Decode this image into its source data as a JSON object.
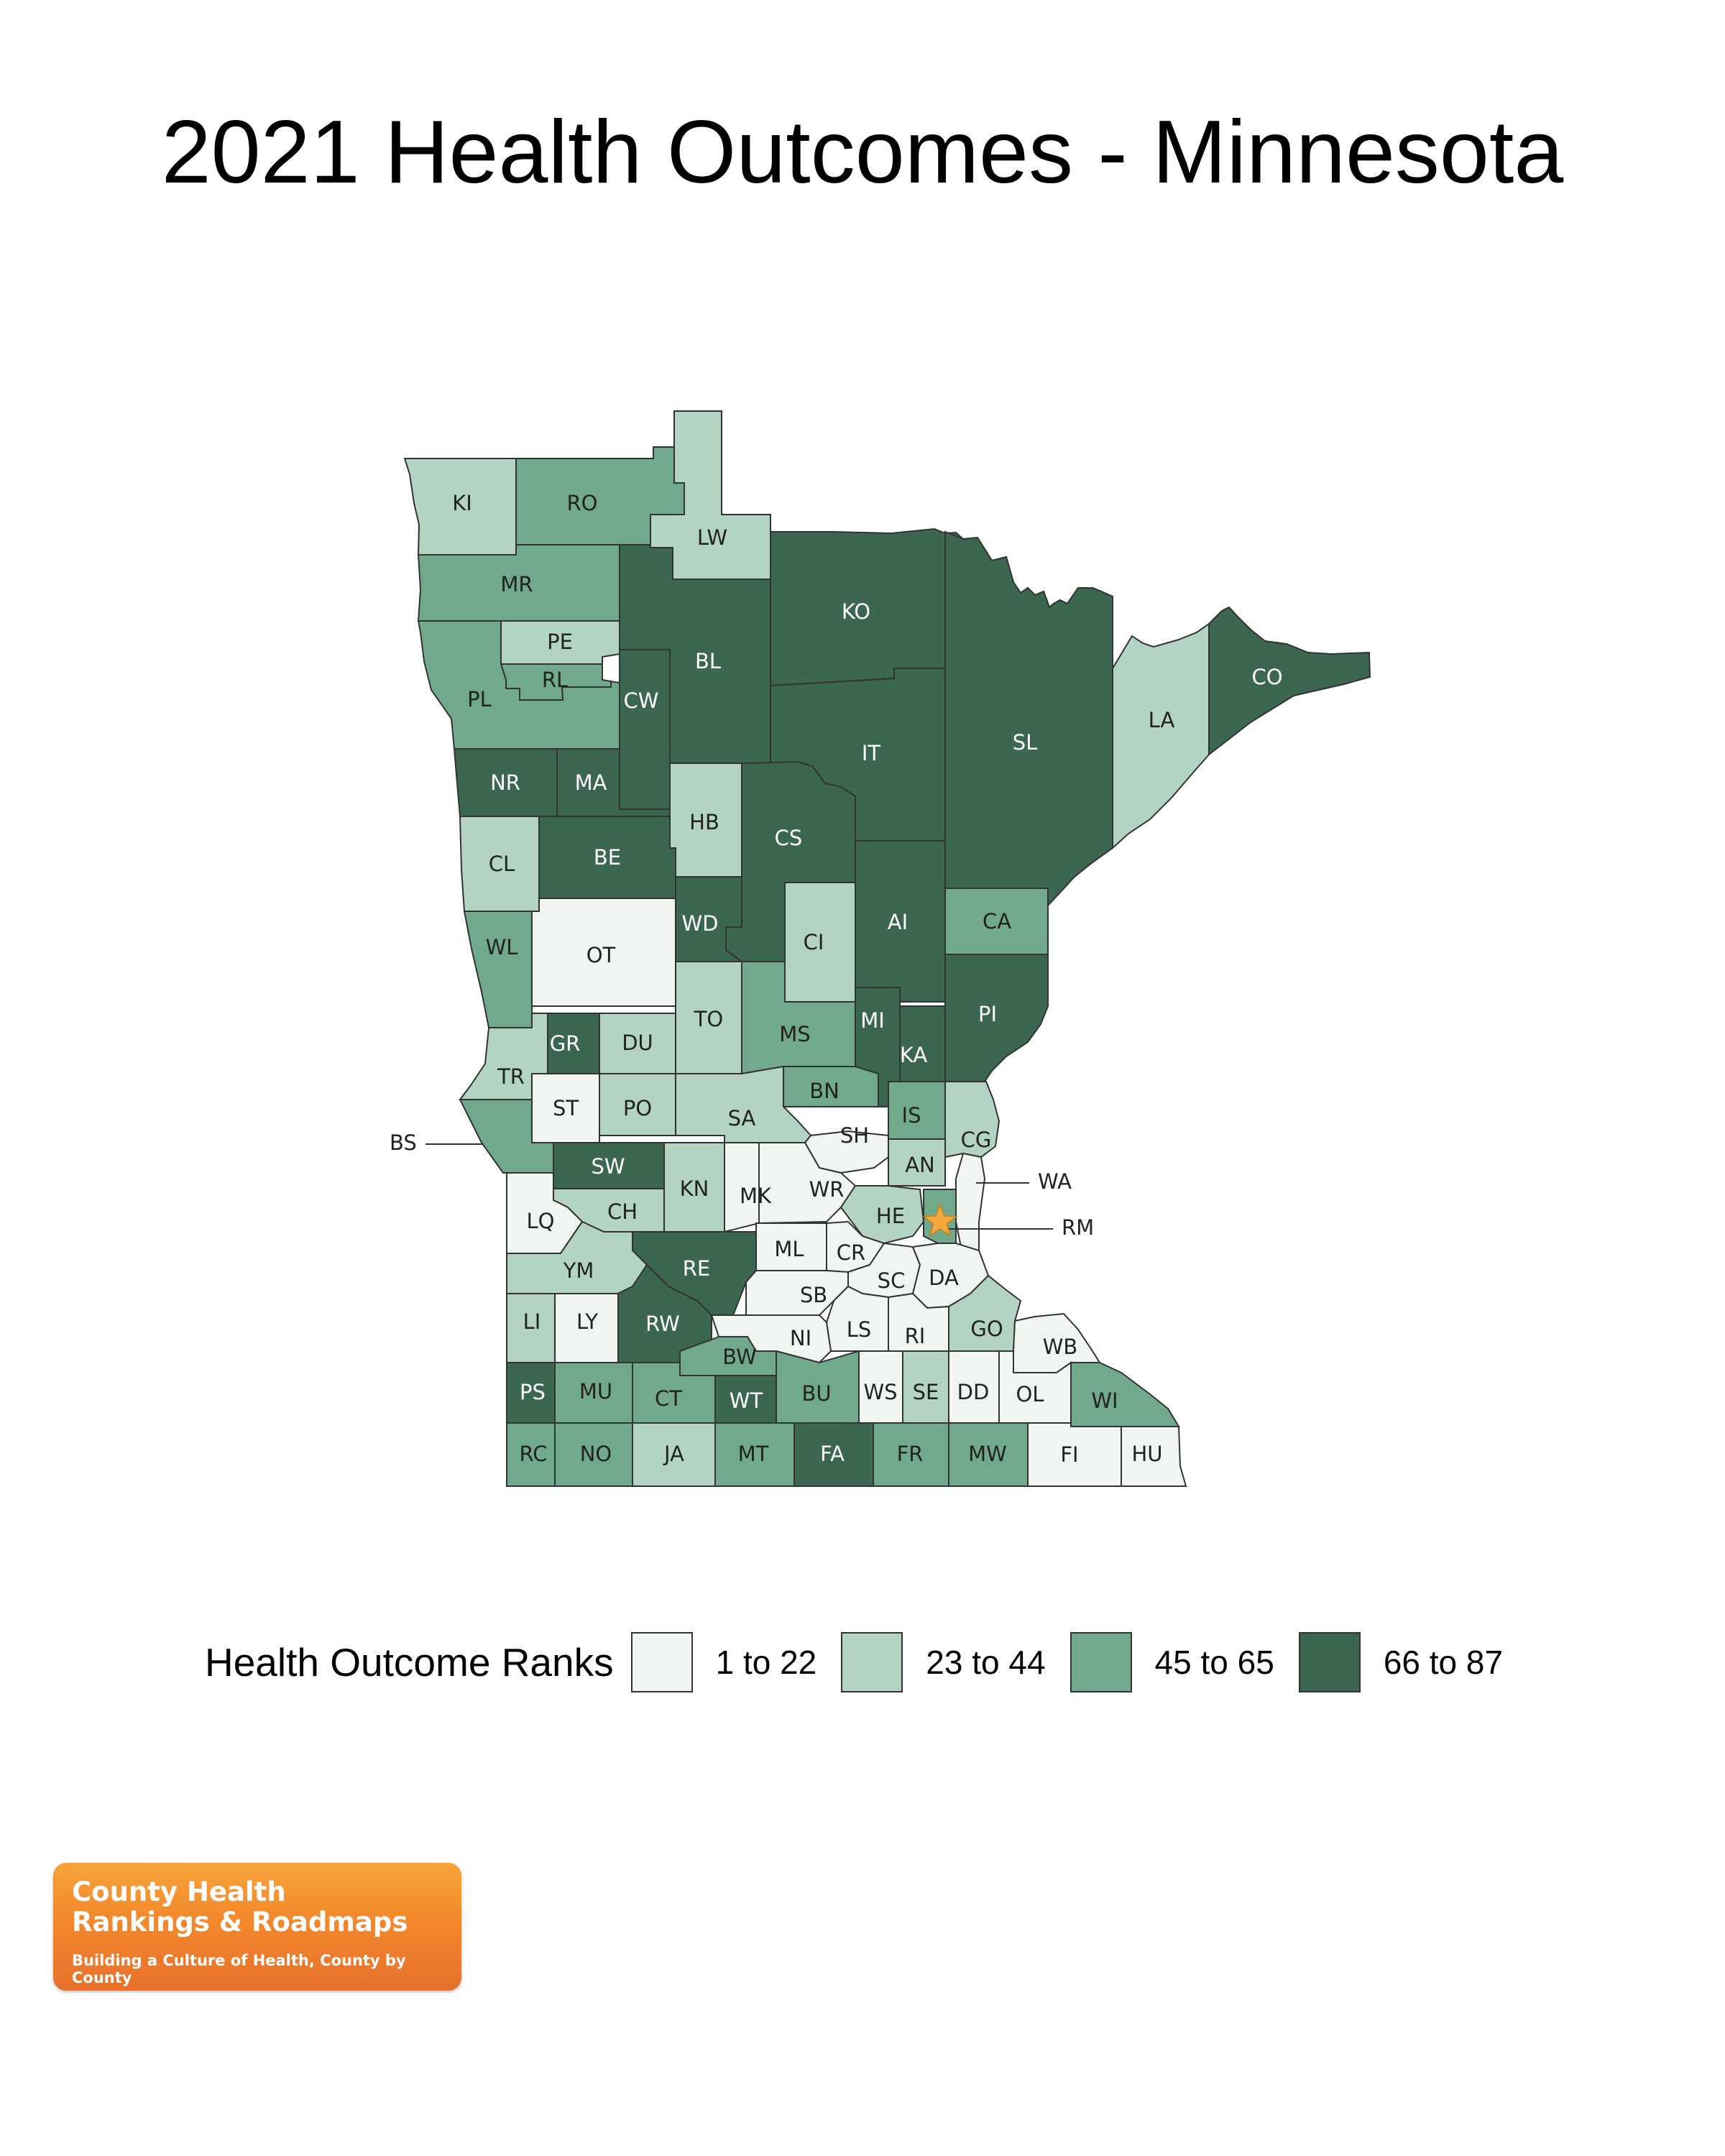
{
  "title": "2021 Health Outcomes - Minnesota",
  "legend": {
    "title": "Health Outcome Ranks",
    "items": [
      {
        "label": "1 to 22",
        "color": "#f1f5f2"
      },
      {
        "label": "23 to 44",
        "color": "#b3d4c3"
      },
      {
        "label": "45 to 65",
        "color": "#70a98c"
      },
      {
        "label": "66 to 87",
        "color": "#3b6751"
      }
    ]
  },
  "marker": {
    "symbol": "star",
    "county": "RM",
    "color": "#f5a73b"
  },
  "counties": [
    {
      "code": "KI",
      "tier": 1
    },
    {
      "code": "RO",
      "tier": 2
    },
    {
      "code": "LW",
      "tier": 1
    },
    {
      "code": "MR",
      "tier": 2
    },
    {
      "code": "KO",
      "tier": 3
    },
    {
      "code": "BL",
      "tier": 3
    },
    {
      "code": "PE",
      "tier": 1
    },
    {
      "code": "RL",
      "tier": 2
    },
    {
      "code": "PL",
      "tier": 2
    },
    {
      "code": "CW",
      "tier": 3
    },
    {
      "code": "CO",
      "tier": 3
    },
    {
      "code": "LA",
      "tier": 1
    },
    {
      "code": "SL",
      "tier": 3
    },
    {
      "code": "IT",
      "tier": 3
    },
    {
      "code": "NR",
      "tier": 3
    },
    {
      "code": "MA",
      "tier": 3
    },
    {
      "code": "HB",
      "tier": 1
    },
    {
      "code": "CS",
      "tier": 3
    },
    {
      "code": "CL",
      "tier": 1
    },
    {
      "code": "BE",
      "tier": 3
    },
    {
      "code": "OT",
      "tier": 0
    },
    {
      "code": "WD",
      "tier": 3
    },
    {
      "code": "CI",
      "tier": 1
    },
    {
      "code": "AI",
      "tier": 3
    },
    {
      "code": "CA",
      "tier": 2
    },
    {
      "code": "WL",
      "tier": 2
    },
    {
      "code": "TO",
      "tier": 1
    },
    {
      "code": "MS",
      "tier": 2
    },
    {
      "code": "MI",
      "tier": 3
    },
    {
      "code": "PI",
      "tier": 3
    },
    {
      "code": "GR",
      "tier": 3
    },
    {
      "code": "DU",
      "tier": 1
    },
    {
      "code": "KA",
      "tier": 3
    },
    {
      "code": "TR",
      "tier": 1
    },
    {
      "code": "BN",
      "tier": 2
    },
    {
      "code": "ST",
      "tier": 0
    },
    {
      "code": "PO",
      "tier": 1
    },
    {
      "code": "SA",
      "tier": 1
    },
    {
      "code": "IS",
      "tier": 2
    },
    {
      "code": "BS",
      "tier": 2
    },
    {
      "code": "SH",
      "tier": 0
    },
    {
      "code": "CG",
      "tier": 1
    },
    {
      "code": "SW",
      "tier": 3
    },
    {
      "code": "AN",
      "tier": 1
    },
    {
      "code": "KN",
      "tier": 1
    },
    {
      "code": "WA",
      "tier": 0
    },
    {
      "code": "MK",
      "tier": 0
    },
    {
      "code": "WR",
      "tier": 0
    },
    {
      "code": "CH",
      "tier": 1
    },
    {
      "code": "HE",
      "tier": 1
    },
    {
      "code": "LQ",
      "tier": 0
    },
    {
      "code": "RM",
      "tier": 2
    },
    {
      "code": "ML",
      "tier": 0
    },
    {
      "code": "CR",
      "tier": 0
    },
    {
      "code": "RE",
      "tier": 3
    },
    {
      "code": "YM",
      "tier": 1
    },
    {
      "code": "SC",
      "tier": 0
    },
    {
      "code": "DA",
      "tier": 0
    },
    {
      "code": "SB",
      "tier": 0
    },
    {
      "code": "LI",
      "tier": 1
    },
    {
      "code": "LY",
      "tier": 0
    },
    {
      "code": "RW",
      "tier": 3
    },
    {
      "code": "LS",
      "tier": 0
    },
    {
      "code": "RI",
      "tier": 0
    },
    {
      "code": "GO",
      "tier": 1
    },
    {
      "code": "NI",
      "tier": 0
    },
    {
      "code": "WB",
      "tier": 0
    },
    {
      "code": "BW",
      "tier": 2
    },
    {
      "code": "PS",
      "tier": 3
    },
    {
      "code": "MU",
      "tier": 2
    },
    {
      "code": "CT",
      "tier": 2
    },
    {
      "code": "WT",
      "tier": 3
    },
    {
      "code": "BU",
      "tier": 2
    },
    {
      "code": "WS",
      "tier": 0
    },
    {
      "code": "SE",
      "tier": 1
    },
    {
      "code": "DD",
      "tier": 0
    },
    {
      "code": "OL",
      "tier": 0
    },
    {
      "code": "WI",
      "tier": 2
    },
    {
      "code": "RC",
      "tier": 2
    },
    {
      "code": "NO",
      "tier": 2
    },
    {
      "code": "JA",
      "tier": 1
    },
    {
      "code": "MT",
      "tier": 2
    },
    {
      "code": "FA",
      "tier": 3
    },
    {
      "code": "FR",
      "tier": 2
    },
    {
      "code": "MW",
      "tier": 2
    },
    {
      "code": "FI",
      "tier": 0
    },
    {
      "code": "HU",
      "tier": 0
    }
  ],
  "logo": {
    "line1": "County Health",
    "line2": "Rankings & Roadmaps",
    "tagline": "Building a Culture of Health, County by County"
  }
}
